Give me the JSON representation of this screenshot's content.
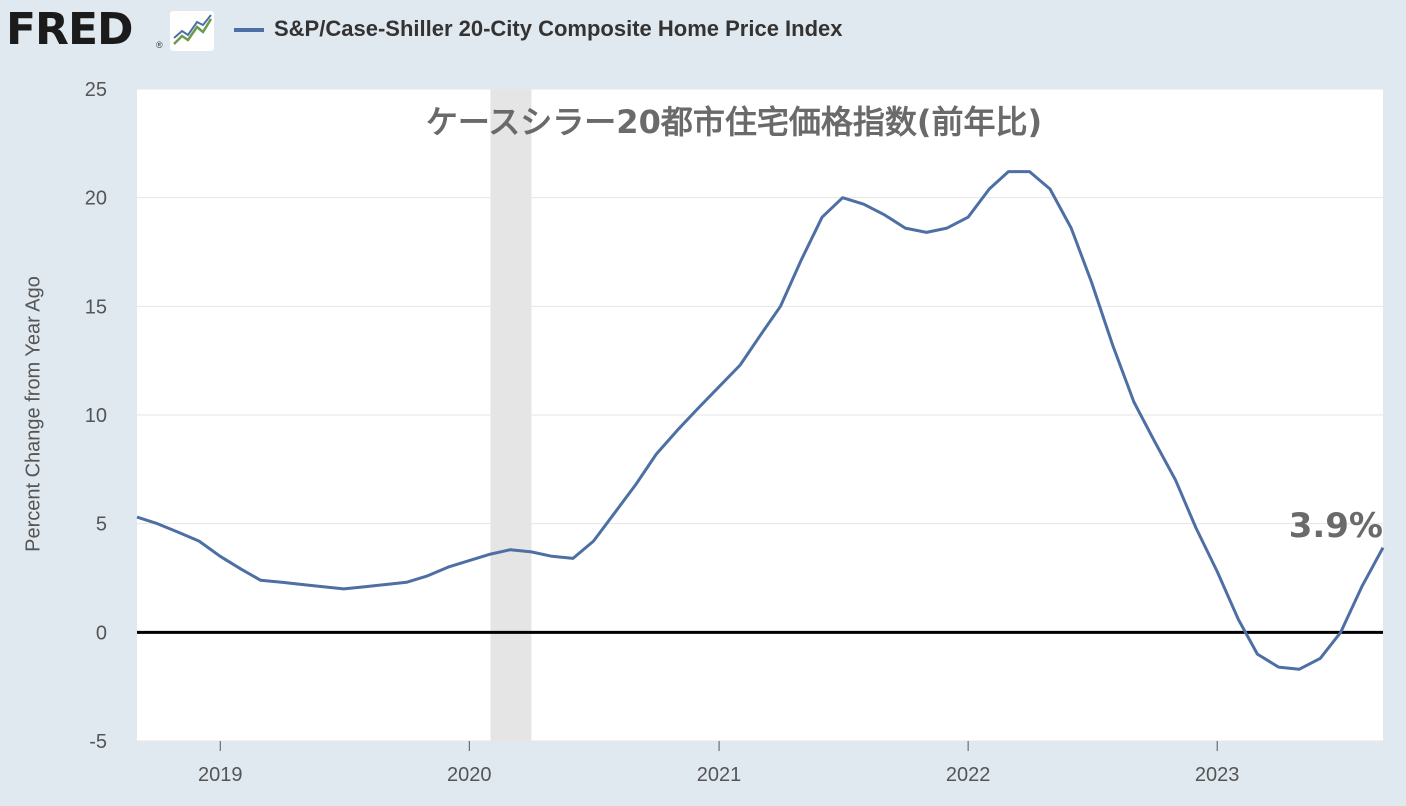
{
  "header": {
    "logo_text": "FRED",
    "logo_reg": "®",
    "legend_label": "S&P/Case-Shiller 20-City Composite Home Price Index"
  },
  "colors": {
    "series": "#4d6fa3",
    "recession": "#e5e5e5",
    "background": "#e1e9f0",
    "zero_line": "#000000"
  },
  "icons": [
    "fred-chart-icon"
  ],
  "chart_data": {
    "type": "line",
    "annotation_title": "ケースシラー20都市住宅価格指数(前年比)",
    "annotation_last": "3.9%",
    "ylabel": "Percent Change from Year Ago",
    "xlabel": "",
    "ylim": [
      -5,
      25
    ],
    "yticks": [
      -5,
      0,
      5,
      10,
      15,
      20,
      25
    ],
    "ytick_labels": [
      "-5",
      "0",
      "5",
      "10",
      "15",
      "20",
      "25"
    ],
    "x_tick_dates": [
      "2019-01-01",
      "2020-01-01",
      "2021-01-01",
      "2022-01-01",
      "2023-01-01"
    ],
    "x_tick_labels": [
      "2019",
      "2020",
      "2021",
      "2022",
      "2023"
    ],
    "xlim": [
      "2018-09-01",
      "2023-09-01"
    ],
    "grid": "horizontal",
    "recession_band": [
      "2020-02-01",
      "2020-04-01"
    ],
    "series": [
      {
        "x": [
          "2018-09-01",
          "2018-10-01",
          "2018-11-01",
          "2018-12-01",
          "2019-01-01",
          "2019-02-01",
          "2019-03-01",
          "2019-04-01",
          "2019-05-01",
          "2019-06-01",
          "2019-07-01",
          "2019-08-01",
          "2019-09-01",
          "2019-10-01",
          "2019-11-01",
          "2019-12-01",
          "2020-01-01",
          "2020-02-01",
          "2020-03-01",
          "2020-04-01",
          "2020-05-01",
          "2020-06-01",
          "2020-07-01",
          "2020-08-01",
          "2020-09-01",
          "2020-10-01",
          "2020-11-01",
          "2020-12-01",
          "2021-01-01",
          "2021-02-01",
          "2021-03-01",
          "2021-04-01",
          "2021-05-01",
          "2021-06-01",
          "2021-07-01",
          "2021-08-01",
          "2021-09-01",
          "2021-10-01",
          "2021-11-01",
          "2021-12-01",
          "2022-01-01",
          "2022-02-01",
          "2022-03-01",
          "2022-04-01",
          "2022-05-01",
          "2022-06-01",
          "2022-07-01",
          "2022-08-01",
          "2022-09-01",
          "2022-10-01",
          "2022-11-01",
          "2022-12-01",
          "2023-01-01",
          "2023-02-01",
          "2023-03-01",
          "2023-04-01",
          "2023-05-01",
          "2023-06-01",
          "2023-07-01",
          "2023-08-01",
          "2023-09-01"
        ],
        "y": [
          5.3,
          5.0,
          4.6,
          4.2,
          3.5,
          2.9,
          2.4,
          2.3,
          2.2,
          2.1,
          2.0,
          2.1,
          2.2,
          2.3,
          2.6,
          3.0,
          3.3,
          3.6,
          3.8,
          3.7,
          3.5,
          3.4,
          4.2,
          5.5,
          6.8,
          8.2,
          9.3,
          10.3,
          11.3,
          12.3,
          13.6,
          15.0,
          17.1,
          19.1,
          20.0,
          19.7,
          19.2,
          18.6,
          18.4,
          18.6,
          19.1,
          20.4,
          21.2,
          21.2,
          20.4,
          18.6,
          16.1,
          13.2,
          10.6,
          8.8,
          7.0,
          4.8,
          2.8,
          0.6,
          -1.0,
          -1.6,
          -1.7,
          -1.2,
          0.0,
          2.1,
          3.9
        ]
      }
    ]
  }
}
